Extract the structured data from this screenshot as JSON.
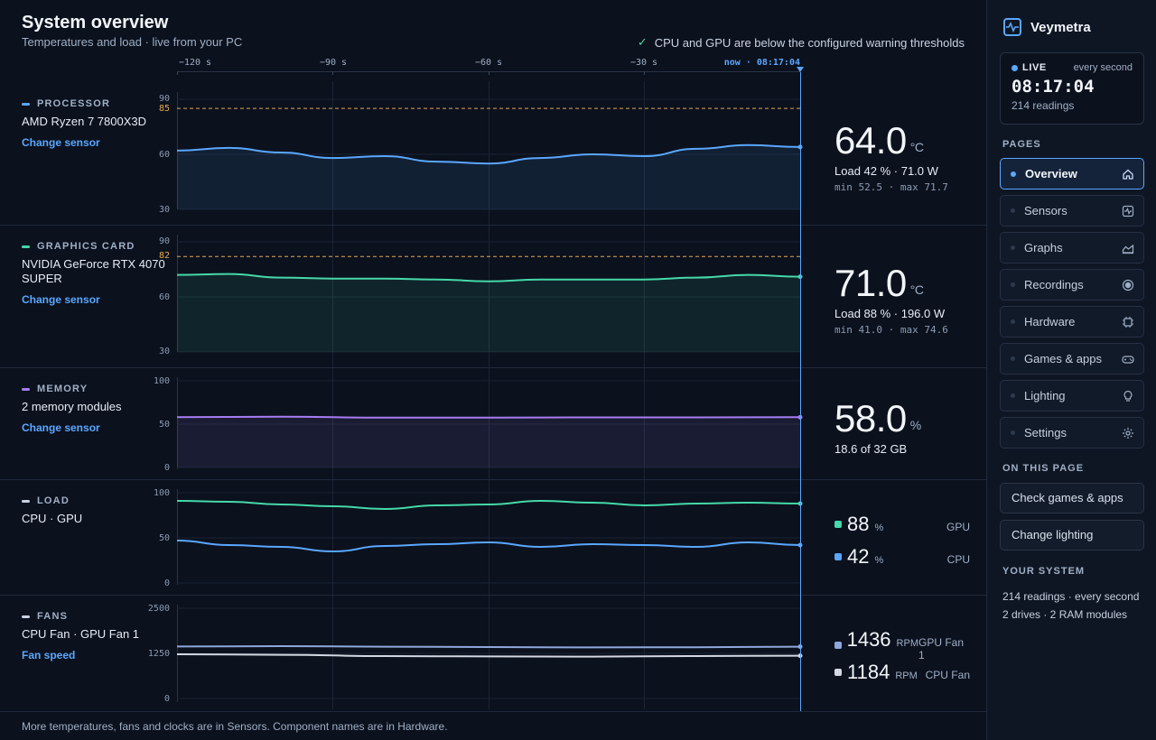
{
  "header": {
    "title": "System overview",
    "subtitle": "Temperatures and load · live from your PC",
    "status": "CPU and GPU are below the configured warning thresholds"
  },
  "time_axis": {
    "labels": [
      "−120 s",
      "−90 s",
      "−60 s",
      "−30 s"
    ],
    "now_label": "now · 08:17:04"
  },
  "sections": {
    "cpu": {
      "tag": "PROCESSOR",
      "name": "AMD Ryzen 7 7800X3D",
      "link": "Change sensor",
      "y_ticks": [
        "90",
        "60",
        "30"
      ],
      "warn_label": "85",
      "value": "64.0",
      "unit": "°C",
      "detail": "Load 42 % · 71.0 W",
      "minmax": "min 52.5 · max 71.7"
    },
    "gpu": {
      "tag": "GRAPHICS CARD",
      "name": "NVIDIA GeForce RTX 4070 SUPER",
      "link": "Change sensor",
      "y_ticks": [
        "90",
        "60",
        "30"
      ],
      "warn_label": "82",
      "value": "71.0",
      "unit": "°C",
      "detail": "Load 88 % · 196.0 W",
      "minmax": "min 41.0 · max 74.6"
    },
    "memory": {
      "tag": "MEMORY",
      "name": "2 memory modules",
      "link": "Change sensor",
      "y_ticks": [
        "100",
        "50",
        "0"
      ],
      "value": "58.0",
      "unit": "%",
      "detail": "18.6 of 32 GB"
    },
    "load": {
      "tag": "LOAD",
      "name": "CPU · GPU",
      "y_ticks": [
        "100",
        "50",
        "0"
      ],
      "gpu_value": "88",
      "gpu_unit": "%",
      "gpu_name": "GPU",
      "cpu_value": "42",
      "cpu_unit": "%",
      "cpu_name": "CPU"
    },
    "fans": {
      "tag": "FANS",
      "name": "CPU Fan · GPU Fan 1",
      "link": "Fan speed",
      "y_ticks": [
        "2500",
        "1250",
        "0"
      ],
      "gpu_value": "1436",
      "gpu_unit": "RPM",
      "gpu_name": "GPU Fan 1",
      "cpu_value": "1184",
      "cpu_unit": "RPM",
      "cpu_name": "CPU Fan"
    }
  },
  "colors": {
    "cpu": "#5aa7ff",
    "gpu": "#46d8aa",
    "memory": "#a77cf2",
    "fan_gpu": "#8fa8dc",
    "fan_cpu": "#d3d8e2",
    "warn": "#e4a94f"
  },
  "chart_data": [
    {
      "type": "line",
      "title": "PROCESSOR",
      "ylim": [
        30,
        90
      ],
      "threshold": 85,
      "x": [
        -120,
        -110,
        -100,
        -90,
        -80,
        -70,
        -60,
        -50,
        -40,
        -30,
        -20,
        -10,
        0
      ],
      "series": [
        {
          "values": [
            62,
            63.5,
            61,
            58,
            59,
            56,
            55,
            58,
            60,
            59,
            63,
            65,
            64
          ]
        }
      ]
    },
    {
      "type": "line",
      "title": "GRAPHICS CARD",
      "ylim": [
        30,
        90
      ],
      "threshold": 82,
      "x": [
        -120,
        -110,
        -100,
        -90,
        -80,
        -70,
        -60,
        -50,
        -40,
        -30,
        -20,
        -10,
        0
      ],
      "series": [
        {
          "values": [
            72,
            72.5,
            70.5,
            70,
            70,
            69.5,
            68.5,
            69.5,
            69.5,
            69.5,
            70.5,
            72,
            71
          ]
        }
      ]
    },
    {
      "type": "line",
      "title": "MEMORY",
      "ylim": [
        0,
        100
      ],
      "x": [
        -120,
        -100,
        -80,
        -60,
        -40,
        -20,
        0
      ],
      "series": [
        {
          "values": [
            58,
            58.5,
            57.5,
            57.5,
            57.8,
            57.8,
            58
          ]
        }
      ]
    },
    {
      "type": "line",
      "title": "LOAD",
      "ylim": [
        0,
        100
      ],
      "x": [
        -120,
        -110,
        -100,
        -90,
        -80,
        -70,
        -60,
        -50,
        -40,
        -30,
        -20,
        -10,
        0
      ],
      "series": [
        {
          "name": "GPU",
          "values": [
            91,
            90,
            87,
            85,
            82,
            86,
            87,
            91,
            89,
            86,
            88,
            89,
            88
          ]
        },
        {
          "name": "CPU",
          "values": [
            47,
            42,
            40,
            35,
            41,
            43,
            45,
            40,
            43,
            42,
            40,
            45,
            42
          ]
        }
      ]
    },
    {
      "type": "line",
      "title": "FANS",
      "ylim": [
        0,
        2500
      ],
      "x": [
        -120,
        -100,
        -80,
        -60,
        -40,
        -20,
        0
      ],
      "series": [
        {
          "name": "GPU Fan 1",
          "values": [
            1440,
            1450,
            1435,
            1425,
            1415,
            1420,
            1436
          ]
        },
        {
          "name": "CPU Fan",
          "values": [
            1225,
            1210,
            1175,
            1165,
            1160,
            1175,
            1184
          ]
        }
      ]
    }
  ],
  "sidebar": {
    "brand": "Veymetra",
    "live_label": "LIVE",
    "live_freq": "every second",
    "clock": "08:17:04",
    "readings": "214 readings",
    "pages_heading": "PAGES",
    "nav": [
      {
        "label": "Overview",
        "icon": "home-icon"
      },
      {
        "label": "Sensors",
        "icon": "pulse-icon"
      },
      {
        "label": "Graphs",
        "icon": "area-chart-icon"
      },
      {
        "label": "Recordings",
        "icon": "record-icon"
      },
      {
        "label": "Hardware",
        "icon": "chip-icon"
      },
      {
        "label": "Games & apps",
        "icon": "gamepad-icon"
      },
      {
        "label": "Lighting",
        "icon": "bulb-icon"
      },
      {
        "label": "Settings",
        "icon": "gear-icon"
      }
    ],
    "on_page_heading": "ON THIS PAGE",
    "actions": [
      "Check games & apps",
      "Change lighting"
    ],
    "system_heading": "YOUR SYSTEM",
    "system_lines": [
      "214 readings · every second",
      "2 drives · 2 RAM modules"
    ]
  },
  "footer": "More temperatures, fans and clocks are in Sensors. Component names are in Hardware."
}
